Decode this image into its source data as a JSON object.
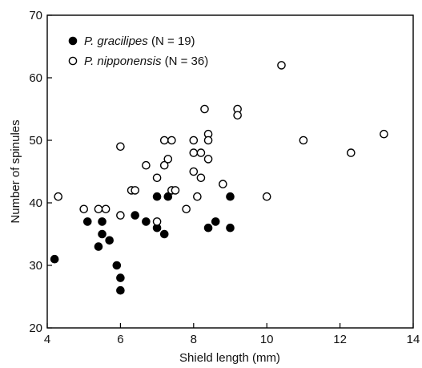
{
  "chart_data": {
    "type": "scatter",
    "xlabel": "Shield length (mm)",
    "ylabel": "Number of spinules",
    "xlim": [
      4,
      14
    ],
    "ylim": [
      20,
      70
    ],
    "xticks": [
      4,
      6,
      8,
      10,
      12,
      14
    ],
    "yticks": [
      20,
      30,
      40,
      50,
      60,
      70
    ],
    "grid": false,
    "legend_position": "top-left",
    "series": [
      {
        "species": "P. gracilipes",
        "count_label": " (N = 19)",
        "marker": "filled-circle",
        "color": "#000000",
        "points": [
          [
            4.2,
            31
          ],
          [
            5.1,
            37
          ],
          [
            5.4,
            33
          ],
          [
            5.5,
            37
          ],
          [
            5.5,
            35
          ],
          [
            5.7,
            34
          ],
          [
            5.9,
            30
          ],
          [
            6.0,
            28
          ],
          [
            6.0,
            26
          ],
          [
            6.4,
            38
          ],
          [
            6.7,
            37
          ],
          [
            7.0,
            41
          ],
          [
            7.0,
            36
          ],
          [
            7.2,
            35
          ],
          [
            7.3,
            41
          ],
          [
            8.4,
            36
          ],
          [
            8.6,
            37
          ],
          [
            9.0,
            41
          ],
          [
            9.0,
            36
          ]
        ]
      },
      {
        "species": "P. nipponensis",
        "count_label": " (N = 36)",
        "marker": "open-circle",
        "color": "#000000",
        "points": [
          [
            4.3,
            41
          ],
          [
            5.0,
            39
          ],
          [
            5.4,
            39
          ],
          [
            5.6,
            39
          ],
          [
            6.0,
            38
          ],
          [
            6.0,
            49
          ],
          [
            6.3,
            42
          ],
          [
            6.4,
            42
          ],
          [
            6.7,
            46
          ],
          [
            7.0,
            37
          ],
          [
            7.0,
            44
          ],
          [
            7.2,
            50
          ],
          [
            7.2,
            46
          ],
          [
            7.3,
            47
          ],
          [
            7.4,
            50
          ],
          [
            7.4,
            42
          ],
          [
            7.5,
            42
          ],
          [
            7.8,
            39
          ],
          [
            8.0,
            50
          ],
          [
            8.0,
            48
          ],
          [
            8.0,
            45
          ],
          [
            8.1,
            41
          ],
          [
            8.2,
            48
          ],
          [
            8.2,
            44
          ],
          [
            8.3,
            55
          ],
          [
            8.4,
            51
          ],
          [
            8.4,
            50
          ],
          [
            8.4,
            47
          ],
          [
            8.8,
            43
          ],
          [
            9.2,
            55
          ],
          [
            9.2,
            54
          ],
          [
            10.0,
            41
          ],
          [
            10.4,
            62
          ],
          [
            11.0,
            50
          ],
          [
            12.3,
            48
          ],
          [
            13.2,
            51
          ]
        ]
      }
    ]
  }
}
